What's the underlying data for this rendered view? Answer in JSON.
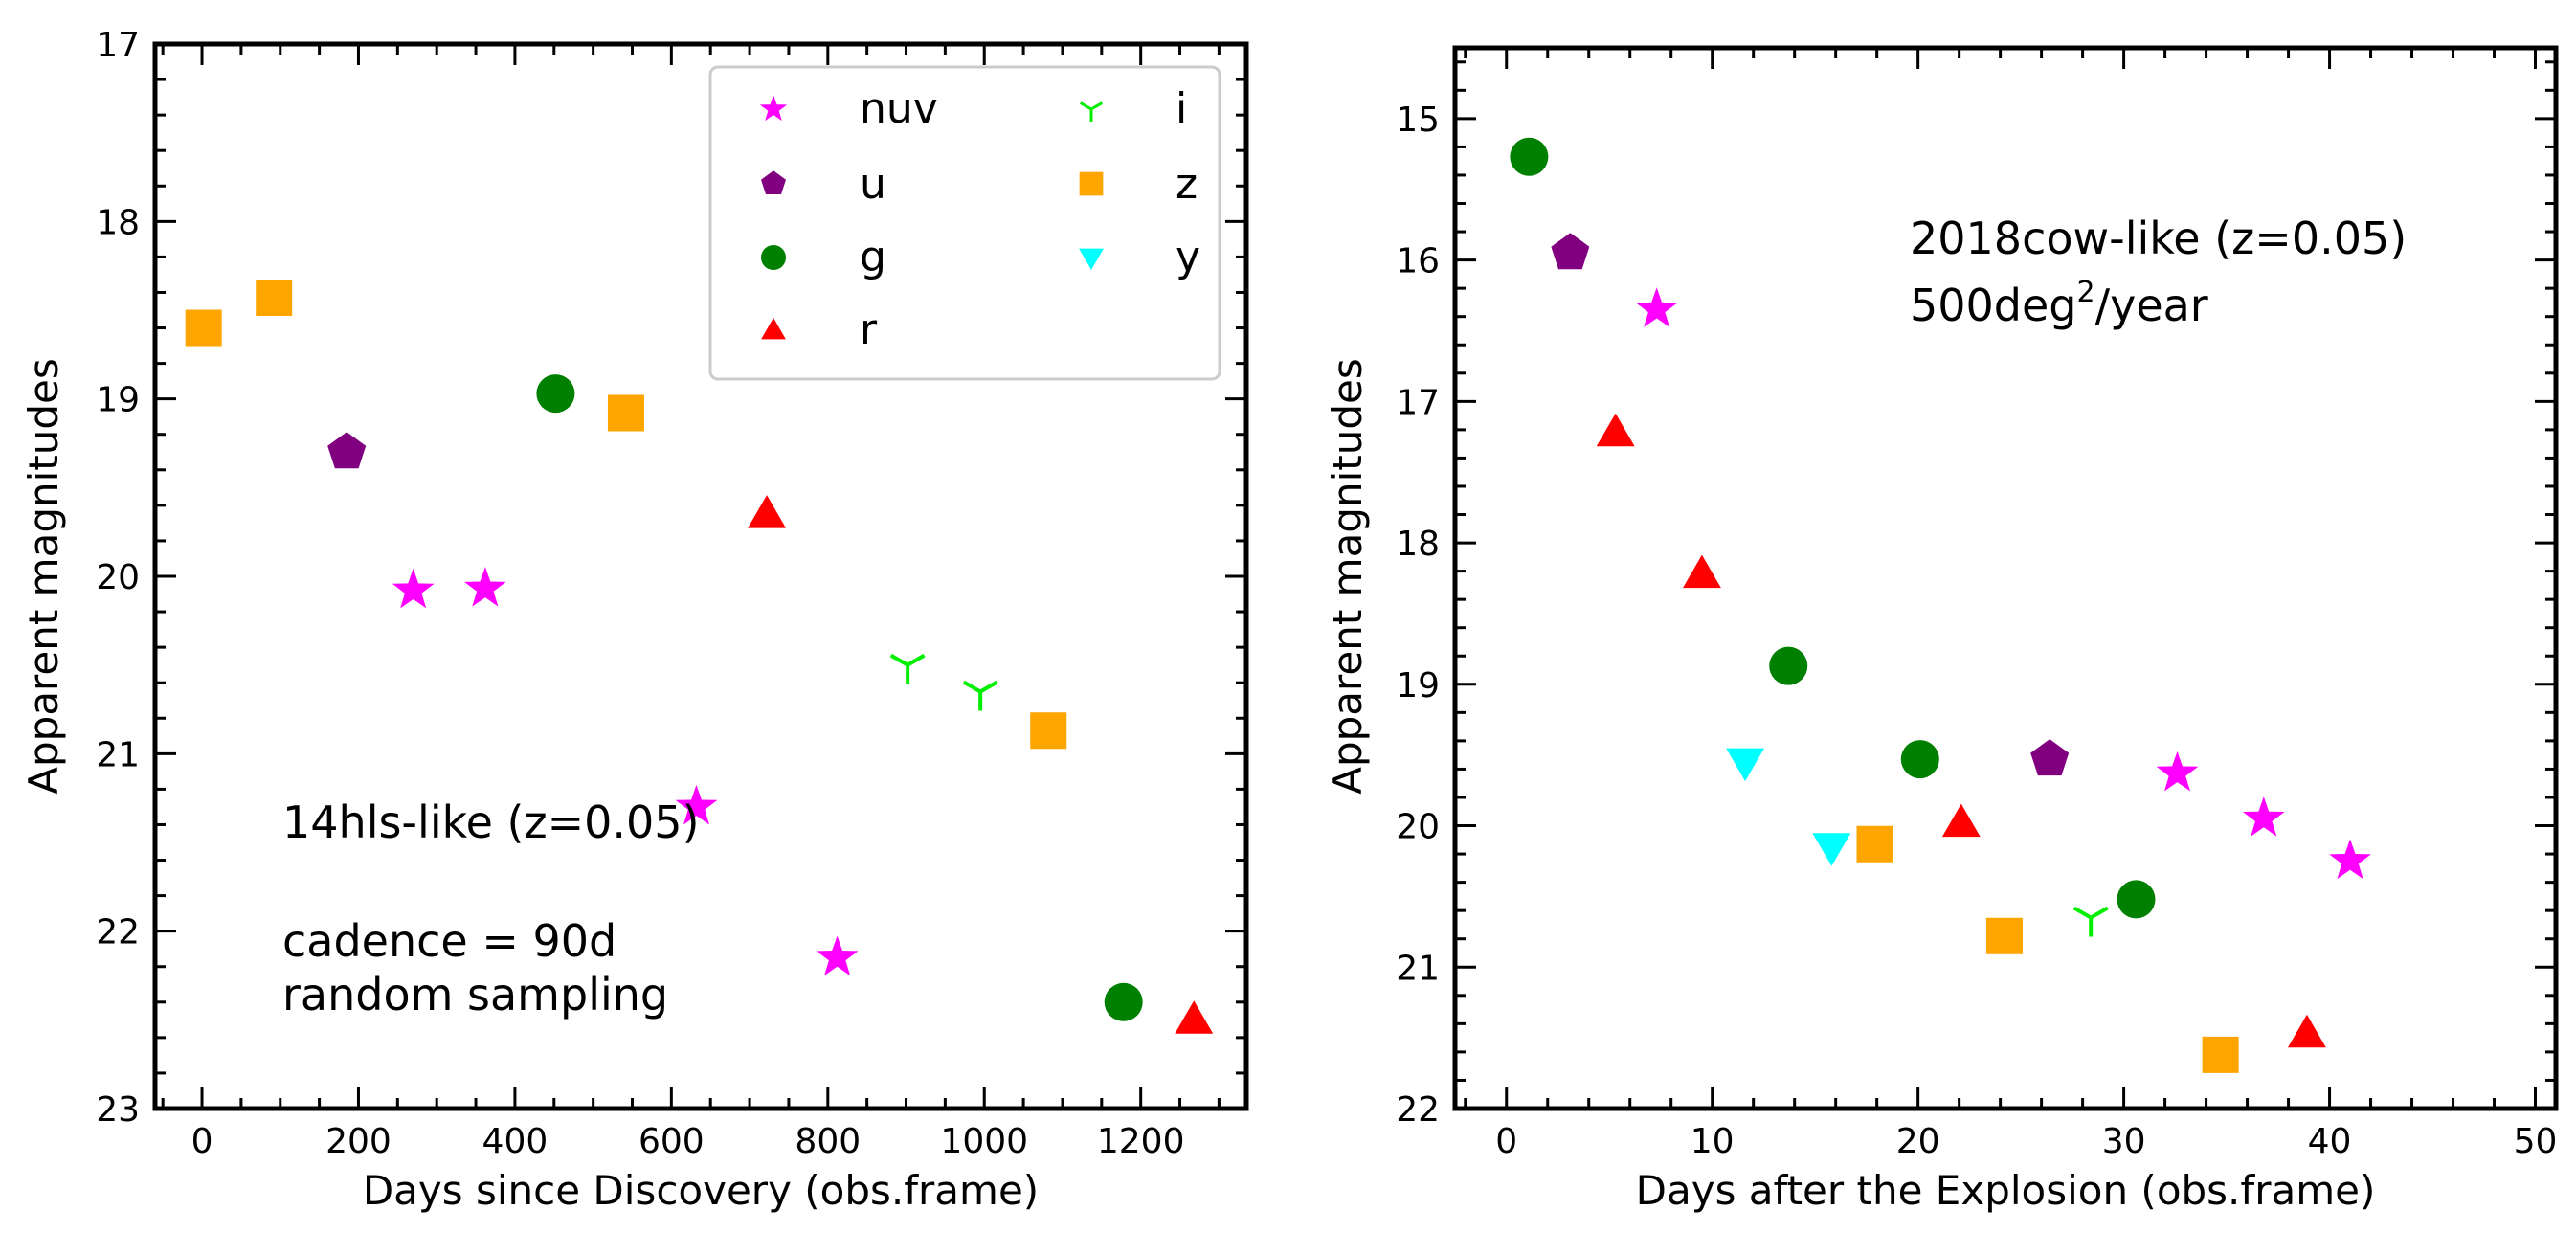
{
  "chart_data": [
    {
      "type": "scatter",
      "xlabel": "Days since Discovery (obs.frame)",
      "ylabel": "Apparent magnitudes",
      "xlim": [
        -60,
        1335
      ],
      "ylim": [
        23,
        17
      ],
      "y_inverted": true,
      "xticks": [
        0,
        200,
        400,
        600,
        800,
        1000,
        1200
      ],
      "yticks": [
        17,
        18,
        19,
        20,
        21,
        22,
        23
      ],
      "annotations": [
        "14hls-like (z=0.05)",
        "cadence = 90d",
        "random sampling"
      ],
      "legend": {
        "placement": "top-right",
        "entries": [
          {
            "band": "nuv",
            "marker": "star",
            "color": "#ff00ff"
          },
          {
            "band": "u",
            "marker": "pentagon",
            "color": "#800080"
          },
          {
            "band": "g",
            "marker": "circle",
            "color": "#008000"
          },
          {
            "band": "r",
            "marker": "triangle-up",
            "color": "#ff0000"
          },
          {
            "band": "i",
            "marker": "tri-down",
            "color": "#00ee00"
          },
          {
            "band": "z",
            "marker": "square",
            "color": "#ffa500"
          },
          {
            "band": "y",
            "marker": "triangle-down",
            "color": "#00ffff"
          }
        ]
      },
      "series": [
        {
          "name": "nuv",
          "x": [
            270,
            362,
            632,
            812
          ],
          "y": [
            20.08,
            20.07,
            21.3,
            22.15
          ]
        },
        {
          "name": "u",
          "x": [
            185
          ],
          "y": [
            19.3
          ]
        },
        {
          "name": "g",
          "x": [
            452,
            1178
          ],
          "y": [
            18.97,
            22.4
          ]
        },
        {
          "name": "r",
          "x": [
            722,
            1268
          ],
          "y": [
            19.65,
            22.5
          ]
        },
        {
          "name": "i",
          "x": [
            902,
            995
          ],
          "y": [
            20.5,
            20.65
          ]
        },
        {
          "name": "z",
          "x": [
            2,
            92,
            542,
            1082
          ],
          "y": [
            18.6,
            18.43,
            19.08,
            20.87
          ]
        },
        {
          "name": "y",
          "x": [],
          "y": []
        }
      ]
    },
    {
      "type": "scatter",
      "xlabel": "Days after the Explosion (obs.frame)",
      "ylabel": "Apparent magnitudes",
      "xlim": [
        -2.5,
        51
      ],
      "ylim": [
        22,
        14.5
      ],
      "y_inverted": true,
      "xticks": [
        0,
        10,
        20,
        30,
        40,
        50
      ],
      "yticks": [
        15,
        16,
        17,
        18,
        19,
        20,
        21,
        22
      ],
      "annotations": [
        "2018cow-like (z=0.05)",
        "500deg",
        "2",
        "/year"
      ],
      "series": [
        {
          "name": "nuv",
          "x": [
            7.3,
            32.6,
            36.8,
            41.0
          ],
          "y": [
            16.35,
            19.63,
            19.95,
            20.25
          ]
        },
        {
          "name": "u",
          "x": [
            3.1,
            26.4
          ],
          "y": [
            15.95,
            19.53
          ]
        },
        {
          "name": "g",
          "x": [
            1.1,
            13.7,
            20.1,
            30.6
          ],
          "y": [
            15.27,
            18.87,
            19.53,
            20.52
          ]
        },
        {
          "name": "r",
          "x": [
            5.3,
            9.5,
            22.1,
            38.9
          ],
          "y": [
            17.22,
            18.22,
            19.98,
            21.47
          ]
        },
        {
          "name": "i",
          "x": [
            28.4
          ],
          "y": [
            20.65
          ]
        },
        {
          "name": "z",
          "x": [
            17.9,
            24.2,
            34.7
          ],
          "y": [
            20.13,
            20.78,
            21.62
          ]
        },
        {
          "name": "y",
          "x": [
            11.6,
            15.8
          ],
          "y": [
            19.55,
            20.15
          ]
        }
      ]
    }
  ]
}
